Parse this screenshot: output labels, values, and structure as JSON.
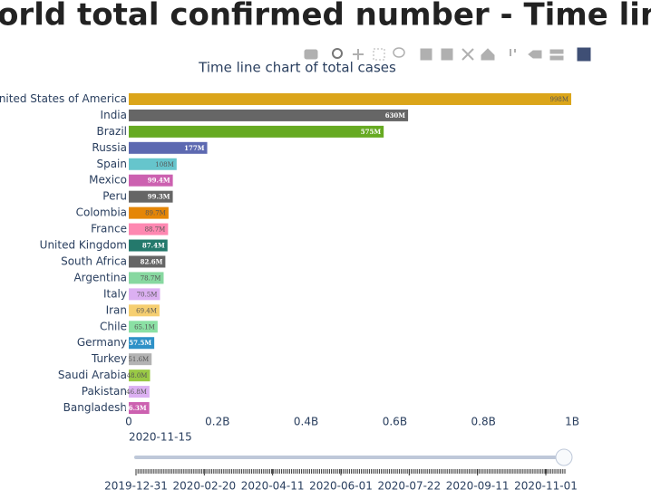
{
  "heading": "World total confirmed number - Time line",
  "chart_data": {
    "type": "hbar",
    "title": "Time line chart of total cases",
    "categories": [
      "United States of America",
      "India",
      "Brazil",
      "Russia",
      "Spain",
      "Mexico",
      "Peru",
      "Colombia",
      "France",
      "United Kingdom",
      "South Africa",
      "Argentina",
      "Italy",
      "Iran",
      "Chile",
      "Germany",
      "Turkey",
      "Saudi Arabia",
      "Pakistan",
      "Bangladesh"
    ],
    "values": [
      998000000,
      630000000,
      575000000,
      177000000,
      108000000,
      99400000,
      99300000,
      89700000,
      88700000,
      87400000,
      82600000,
      78700000,
      70500000,
      69400000,
      65100000,
      57500000,
      51600000,
      48000000,
      46800000,
      46300000
    ],
    "value_labels": [
      "998M",
      "630M",
      "575M",
      "177M",
      "108M",
      "99.4M",
      "99.3M",
      "89.7M",
      "88.7M",
      "87.4M",
      "82.6M",
      "78.7M",
      "70.5M",
      "69.4M",
      "65.1M",
      "57.5M",
      "51.6M",
      "48.0M",
      "46.8M",
      "46.3M"
    ],
    "colors": [
      "#dba51a",
      "#666666",
      "#66aa22",
      "#5d69b1",
      "#66c5cc",
      "#cc61b0",
      "#666666",
      "#e58606",
      "#fe88b1",
      "#24796c",
      "#666666",
      "#87d8a0",
      "#dcb0f2",
      "#f6cf71",
      "#8be0a4",
      "#2e91c7",
      "#b3b3b3",
      "#99c945",
      "#dcb0f2",
      "#cc61b0"
    ],
    "xlim": [
      0,
      1000000000
    ],
    "xticks": [
      0,
      {
        "value": 200000000,
        "label": "0.2B"
      },
      {
        "value": 400000000,
        "label": "0.4B"
      },
      {
        "value": 600000000,
        "label": "0.6B"
      },
      {
        "value": 800000000,
        "label": "0.8B"
      },
      {
        "value": 1000000000,
        "label": "1B"
      }
    ]
  },
  "slider": {
    "current": "2020-11-15",
    "labels": [
      "2019-12-31",
      "2020-02-20",
      "2020-04-11",
      "2020-06-01",
      "2020-07-22",
      "2020-09-11",
      "2020-11-01"
    ]
  }
}
